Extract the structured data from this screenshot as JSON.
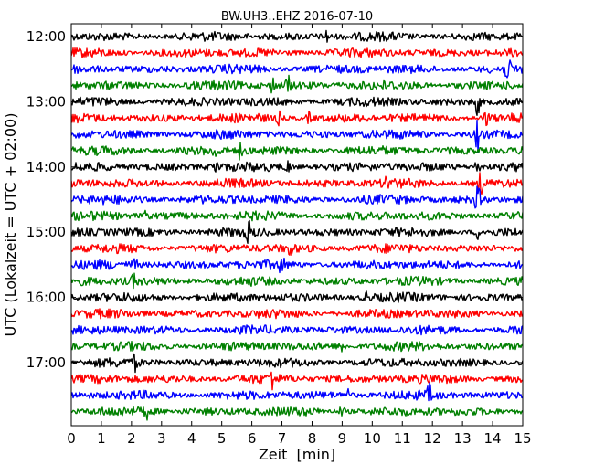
{
  "chart_data": {
    "type": "line",
    "title": "BW.UH3..EHZ 2016-07-10",
    "xlabel": "Zeit  [min]",
    "ylabel": "UTC (Lokalzeit = UTC + 02:00)",
    "xlim": [
      0,
      15
    ],
    "x_ticks": [
      "0",
      "1",
      "2",
      "3",
      "4",
      "5",
      "6",
      "7",
      "8",
      "9",
      "10",
      "11",
      "12",
      "13",
      "14",
      "15"
    ],
    "y_tick_labels": [
      "12:00",
      "13:00",
      "14:00",
      "15:00",
      "16:00",
      "17:00"
    ],
    "grid": false,
    "trace_colors": [
      "#000000",
      "#ff0000",
      "#0000ff",
      "#008000"
    ],
    "rows": [
      {
        "time": "12:00",
        "color": "black",
        "spikes": [
          [
            8.5,
            1.5
          ]
        ]
      },
      {
        "time": "12:15",
        "color": "red",
        "spikes": []
      },
      {
        "time": "12:30",
        "color": "blue",
        "spikes": [
          [
            14.5,
            1.4
          ]
        ]
      },
      {
        "time": "12:45",
        "color": "green",
        "spikes": [
          [
            6.7,
            1.8
          ],
          [
            7.2,
            1.8
          ]
        ]
      },
      {
        "time": "13:00",
        "color": "black",
        "spikes": [
          [
            13.5,
            2.5
          ]
        ]
      },
      {
        "time": "13:15",
        "color": "red",
        "spikes": [
          [
            6.9,
            1.4
          ],
          [
            7.9,
            1.4
          ],
          [
            13.8,
            1.6
          ]
        ]
      },
      {
        "time": "13:30",
        "color": "blue",
        "spikes": [
          [
            13.5,
            2.5
          ]
        ]
      },
      {
        "time": "13:45",
        "color": "green",
        "spikes": [
          [
            4.8,
            1.4
          ],
          [
            5.6,
            1.3
          ]
        ]
      },
      {
        "time": "14:00",
        "color": "black",
        "spikes": [
          [
            4.8,
            2.0
          ],
          [
            7.2,
            1.5
          ],
          [
            13.5,
            2.5
          ]
        ]
      },
      {
        "time": "14:15",
        "color": "red",
        "spikes": [
          [
            13.6,
            2.0
          ],
          [
            10.5,
            1.3
          ]
        ]
      },
      {
        "time": "14:30",
        "color": "blue",
        "spikes": [
          [
            13.5,
            2.5
          ]
        ]
      },
      {
        "time": "14:45",
        "color": "green",
        "spikes": [
          [
            2.5,
            1.4
          ]
        ]
      },
      {
        "time": "15:00",
        "color": "black",
        "spikes": [
          [
            5.9,
            1.4
          ],
          [
            13.5,
            1.5
          ]
        ]
      },
      {
        "time": "15:15",
        "color": "red",
        "spikes": [
          [
            7.3,
            1.4
          ]
        ]
      },
      {
        "time": "15:30",
        "color": "blue",
        "spikes": [
          [
            2.1,
            1.6
          ],
          [
            7.0,
            1.4
          ]
        ]
      },
      {
        "time": "15:45",
        "color": "green",
        "spikes": [
          [
            2.1,
            1.4
          ]
        ]
      },
      {
        "time": "16:00",
        "color": "black",
        "spikes": [
          [
            9.8,
            1.4
          ]
        ]
      },
      {
        "time": "16:15",
        "color": "red",
        "spikes": []
      },
      {
        "time": "16:30",
        "color": "blue",
        "spikes": []
      },
      {
        "time": "16:45",
        "color": "green",
        "spikes": [
          [
            9.0,
            1.8
          ]
        ]
      },
      {
        "time": "17:00",
        "color": "black",
        "spikes": [
          [
            2.1,
            1.3
          ]
        ]
      },
      {
        "time": "17:15",
        "color": "red",
        "spikes": [
          [
            6.7,
            1.5
          ]
        ]
      },
      {
        "time": "17:30",
        "color": "blue",
        "spikes": [
          [
            9.2,
            2.0
          ],
          [
            11.9,
            1.3
          ]
        ]
      },
      {
        "time": "17:45",
        "color": "green",
        "spikes": [
          [
            9.0,
            2.0
          ],
          [
            2.5,
            1.2
          ]
        ]
      }
    ]
  }
}
